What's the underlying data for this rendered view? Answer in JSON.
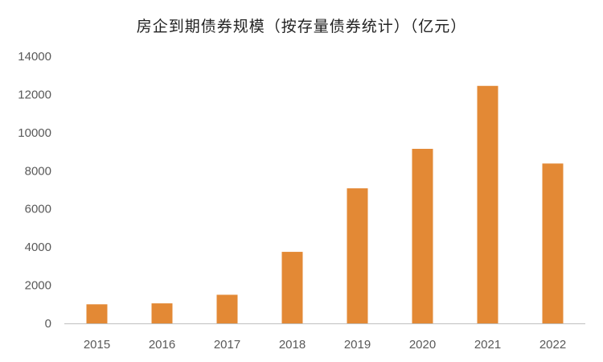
{
  "chart_data": {
    "type": "bar",
    "title": "房企到期债券规模（按存量债券统计）（亿元）",
    "xlabel": "",
    "ylabel": "",
    "categories": [
      "2015",
      "2016",
      "2017",
      "2018",
      "2019",
      "2020",
      "2021",
      "2022"
    ],
    "values": [
      1000,
      1050,
      1500,
      3750,
      7080,
      9150,
      12450,
      8380
    ],
    "ylim": [
      0,
      14000
    ],
    "yticks": [
      "0",
      "2000",
      "4000",
      "6000",
      "8000",
      "10000",
      "12000",
      "14000"
    ],
    "bar_color": "#E38935",
    "axis_color": "#BFBFBF",
    "grid": false,
    "legend": "none"
  }
}
